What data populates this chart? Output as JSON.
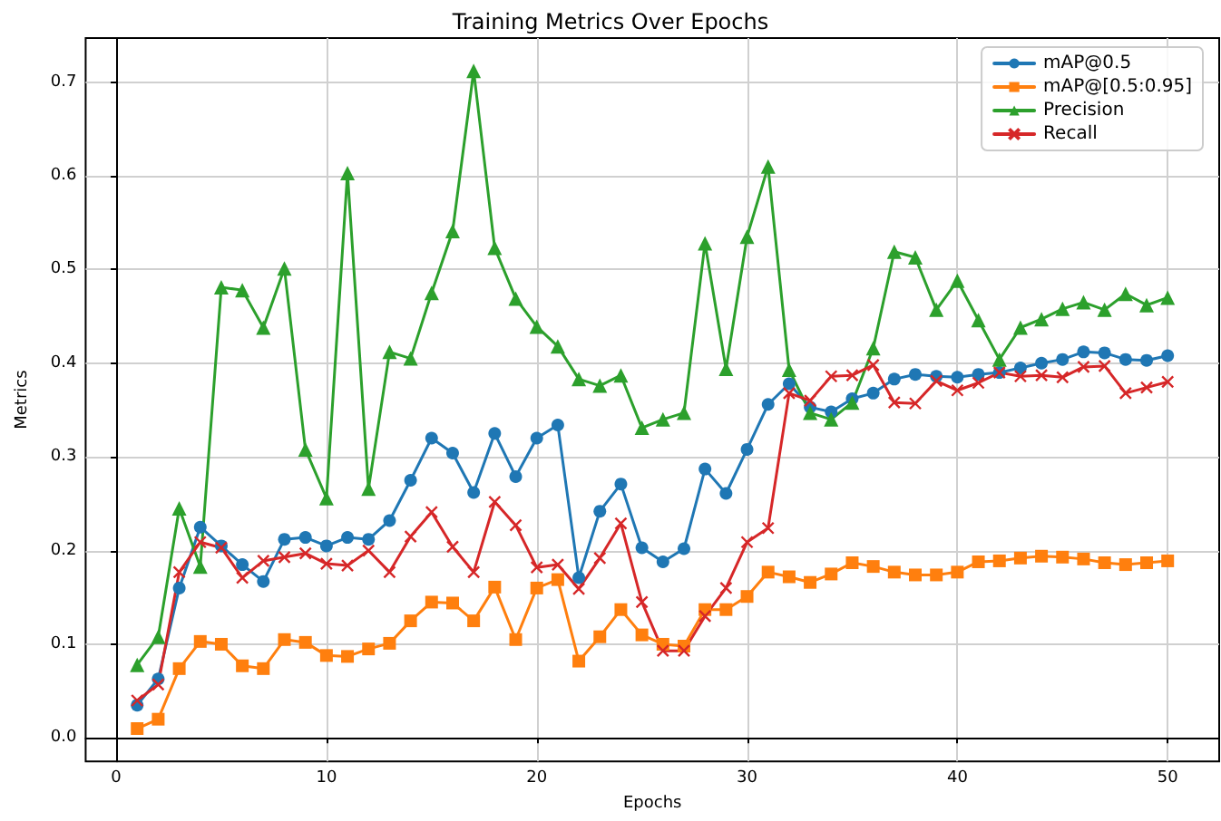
{
  "chart_data": {
    "type": "line",
    "title": "Training Metrics Over Epochs",
    "xlabel": "Epochs",
    "ylabel": "Metrics",
    "x": [
      1,
      2,
      3,
      4,
      5,
      6,
      7,
      8,
      9,
      10,
      11,
      12,
      13,
      14,
      15,
      16,
      17,
      18,
      19,
      20,
      21,
      22,
      23,
      24,
      25,
      26,
      27,
      28,
      29,
      30,
      31,
      32,
      33,
      34,
      35,
      36,
      37,
      38,
      39,
      40,
      41,
      42,
      43,
      44,
      45,
      46,
      47,
      48,
      49,
      50
    ],
    "series": [
      {
        "name": "mAP@0.5",
        "color": "#1f77b4",
        "marker": "circle",
        "values": [
          0.035,
          0.063,
          0.16,
          0.225,
          0.205,
          0.185,
          0.167,
          0.212,
          0.214,
          0.205,
          0.214,
          0.212,
          0.232,
          0.275,
          0.32,
          0.304,
          0.262,
          0.325,
          0.279,
          0.32,
          0.334,
          0.171,
          0.242,
          0.271,
          0.203,
          0.188,
          0.202,
          0.287,
          0.261,
          0.308,
          0.356,
          0.378,
          0.353,
          0.348,
          0.362,
          0.368,
          0.383,
          0.388,
          0.386,
          0.385,
          0.388,
          0.39,
          0.395,
          0.4,
          0.404,
          0.412,
          0.411,
          0.404,
          0.403,
          0.408
        ]
      },
      {
        "name": "mAP@[0.5:0.95]",
        "color": "#ff7f0e",
        "marker": "square",
        "values": [
          0.01,
          0.02,
          0.074,
          0.103,
          0.1,
          0.077,
          0.074,
          0.105,
          0.102,
          0.088,
          0.087,
          0.095,
          0.101,
          0.125,
          0.145,
          0.144,
          0.125,
          0.161,
          0.105,
          0.16,
          0.169,
          0.082,
          0.108,
          0.137,
          0.11,
          0.1,
          0.098,
          0.137,
          0.137,
          0.151,
          0.177,
          0.172,
          0.166,
          0.175,
          0.187,
          0.183,
          0.177,
          0.174,
          0.174,
          0.177,
          0.188,
          0.189,
          0.192,
          0.194,
          0.193,
          0.191,
          0.187,
          0.185,
          0.187,
          0.189
        ]
      },
      {
        "name": "Precision",
        "color": "#2ca02c",
        "marker": "triangle",
        "values": [
          0.078,
          0.108,
          0.245,
          0.183,
          0.481,
          0.478,
          0.438,
          0.501,
          0.308,
          0.256,
          0.603,
          0.266,
          0.412,
          0.405,
          0.475,
          0.541,
          0.712,
          0.523,
          0.469,
          0.439,
          0.418,
          0.383,
          0.376,
          0.387,
          0.331,
          0.34,
          0.347,
          0.528,
          0.394,
          0.535,
          0.61,
          0.393,
          0.347,
          0.34,
          0.358,
          0.416,
          0.519,
          0.513,
          0.457,
          0.488,
          0.446,
          0.404,
          0.438,
          0.447,
          0.458,
          0.465,
          0.457,
          0.474,
          0.462,
          0.47
        ]
      },
      {
        "name": "Recall",
        "color": "#d62728",
        "marker": "cross",
        "values": [
          0.04,
          0.057,
          0.177,
          0.209,
          0.203,
          0.171,
          0.189,
          0.193,
          0.197,
          0.186,
          0.184,
          0.2,
          0.177,
          0.215,
          0.241,
          0.204,
          0.177,
          0.252,
          0.227,
          0.182,
          0.185,
          0.159,
          0.192,
          0.229,
          0.145,
          0.093,
          0.093,
          0.13,
          0.16,
          0.209,
          0.224,
          0.368,
          0.36,
          0.386,
          0.387,
          0.398,
          0.358,
          0.357,
          0.381,
          0.371,
          0.379,
          0.39,
          0.386,
          0.387,
          0.385,
          0.396,
          0.397,
          0.368,
          0.374,
          0.38
        ]
      }
    ],
    "xlim": [
      -1.45,
      52.45
    ],
    "xticks": [
      0,
      10,
      20,
      30,
      40,
      50
    ],
    "ylim": [
      -0.025,
      0.747
    ],
    "yticks": [
      {
        "value": 0,
        "label": "0.0"
      },
      {
        "value": 0.1,
        "label": "0.1"
      },
      {
        "value": 0.2,
        "label": "0.2"
      },
      {
        "value": 0.3,
        "label": "0.3"
      },
      {
        "value": 0.4,
        "label": "0.4"
      },
      {
        "value": 0.5,
        "label": "0.5"
      },
      {
        "value": 0.6,
        "label": "0.6"
      },
      {
        "value": 0.7,
        "label": "0.7"
      }
    ],
    "grid": true,
    "legend": "top right",
    "line_style": "solid"
  }
}
